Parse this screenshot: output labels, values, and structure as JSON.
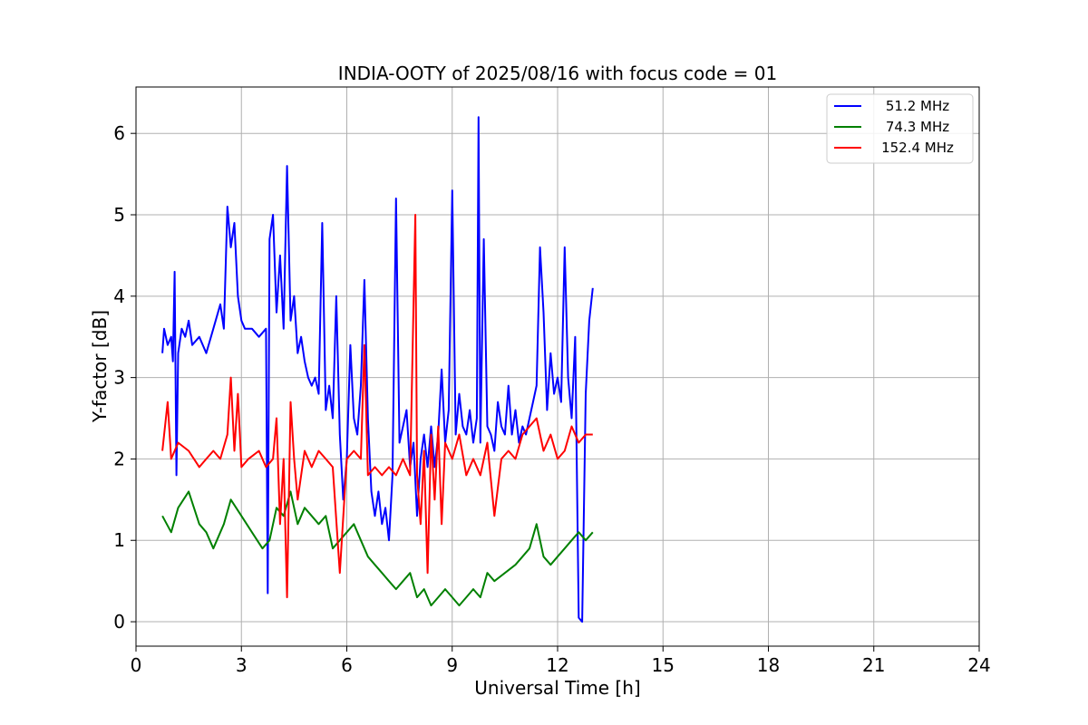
{
  "chart_data": {
    "type": "line",
    "title": "INDIA-OOTY of 2025/08/16 with focus code = 01",
    "xlabel": "Universal Time [h]",
    "ylabel": "Y-factor [dB]",
    "xlim": [
      0,
      24
    ],
    "ylim": [
      -0.3,
      6.57
    ],
    "xticks": [
      0,
      3,
      6,
      9,
      12,
      15,
      18,
      21,
      24
    ],
    "yticks": [
      0,
      1,
      2,
      3,
      4,
      5,
      6
    ],
    "grid": true,
    "legend_position": "top-right",
    "series": [
      {
        "name": "51.2 MHz",
        "color": "#0000ff",
        "x": [
          0.75,
          0.8,
          0.9,
          1.0,
          1.05,
          1.1,
          1.15,
          1.2,
          1.3,
          1.4,
          1.5,
          1.6,
          1.8,
          2.0,
          2.2,
          2.4,
          2.5,
          2.6,
          2.7,
          2.8,
          2.9,
          3.0,
          3.1,
          3.3,
          3.5,
          3.7,
          3.75,
          3.8,
          3.9,
          4.0,
          4.1,
          4.2,
          4.3,
          4.4,
          4.5,
          4.6,
          4.7,
          4.8,
          4.9,
          5.0,
          5.1,
          5.2,
          5.3,
          5.4,
          5.5,
          5.6,
          5.7,
          5.8,
          5.9,
          6.0,
          6.1,
          6.2,
          6.3,
          6.4,
          6.5,
          6.6,
          6.7,
          6.8,
          6.9,
          7.0,
          7.1,
          7.2,
          7.3,
          7.4,
          7.5,
          7.6,
          7.7,
          7.8,
          7.9,
          8.0,
          8.1,
          8.2,
          8.3,
          8.4,
          8.5,
          8.6,
          8.7,
          8.8,
          8.9,
          9.0,
          9.1,
          9.2,
          9.3,
          9.4,
          9.5,
          9.6,
          9.7,
          9.75,
          9.8,
          9.9,
          10.0,
          10.1,
          10.2,
          10.3,
          10.4,
          10.5,
          10.6,
          10.7,
          10.8,
          10.9,
          11.0,
          11.1,
          11.2,
          11.3,
          11.4,
          11.5,
          11.6,
          11.7,
          11.8,
          11.9,
          12.0,
          12.1,
          12.2,
          12.3,
          12.4,
          12.5,
          12.6,
          12.7,
          12.8,
          12.9,
          13.0
        ],
        "y": [
          3.3,
          3.6,
          3.4,
          3.5,
          3.2,
          4.3,
          1.8,
          3.3,
          3.6,
          3.5,
          3.7,
          3.4,
          3.5,
          3.3,
          3.6,
          3.9,
          3.6,
          5.1,
          4.6,
          4.9,
          4.0,
          3.7,
          3.6,
          3.6,
          3.5,
          3.6,
          0.35,
          4.7,
          5.0,
          3.8,
          4.5,
          3.6,
          5.6,
          3.7,
          4.0,
          3.3,
          3.5,
          3.2,
          3.0,
          2.9,
          3.0,
          2.8,
          4.9,
          2.6,
          2.9,
          2.5,
          4.0,
          2.3,
          1.5,
          2.0,
          3.4,
          2.5,
          2.3,
          2.9,
          4.2,
          2.5,
          1.6,
          1.3,
          1.6,
          1.2,
          1.4,
          1.0,
          1.8,
          5.2,
          2.2,
          2.4,
          2.6,
          1.9,
          2.2,
          1.3,
          2.0,
          2.3,
          1.9,
          2.4,
          1.9,
          2.3,
          3.1,
          2.2,
          2.6,
          5.3,
          2.3,
          2.8,
          2.4,
          2.3,
          2.6,
          2.2,
          2.5,
          6.2,
          2.2,
          4.7,
          2.4,
          2.3,
          2.1,
          2.7,
          2.4,
          2.3,
          2.9,
          2.3,
          2.6,
          2.2,
          2.4,
          2.3,
          2.5,
          2.7,
          2.9,
          4.6,
          3.8,
          2.6,
          3.3,
          2.8,
          3.0,
          2.7,
          4.6,
          3.0,
          2.5,
          3.5,
          0.05,
          0.0,
          2.8,
          3.7,
          4.1
        ]
      },
      {
        "name": "74.3 MHz",
        "color": "#008000",
        "x": [
          0.75,
          1.0,
          1.2,
          1.5,
          1.8,
          2.0,
          2.2,
          2.5,
          2.7,
          3.0,
          3.3,
          3.6,
          3.8,
          4.0,
          4.2,
          4.4,
          4.6,
          4.8,
          5.0,
          5.2,
          5.4,
          5.6,
          5.8,
          6.0,
          6.2,
          6.4,
          6.6,
          6.8,
          7.0,
          7.2,
          7.4,
          7.6,
          7.8,
          8.0,
          8.2,
          8.4,
          8.6,
          8.8,
          9.0,
          9.2,
          9.4,
          9.6,
          9.8,
          10.0,
          10.2,
          10.5,
          10.8,
          11.0,
          11.2,
          11.4,
          11.6,
          11.8,
          12.0,
          12.2,
          12.4,
          12.6,
          12.8,
          13.0
        ],
        "y": [
          1.3,
          1.1,
          1.4,
          1.6,
          1.2,
          1.1,
          0.9,
          1.2,
          1.5,
          1.3,
          1.1,
          0.9,
          1.0,
          1.4,
          1.3,
          1.6,
          1.2,
          1.4,
          1.3,
          1.2,
          1.3,
          0.9,
          1.0,
          1.1,
          1.2,
          1.0,
          0.8,
          0.7,
          0.6,
          0.5,
          0.4,
          0.5,
          0.6,
          0.3,
          0.4,
          0.2,
          0.3,
          0.4,
          0.3,
          0.2,
          0.3,
          0.4,
          0.3,
          0.6,
          0.5,
          0.6,
          0.7,
          0.8,
          0.9,
          1.2,
          0.8,
          0.7,
          0.8,
          0.9,
          1.0,
          1.1,
          1.0,
          1.1
        ]
      },
      {
        "name": "152.4 MHz",
        "color": "#ff0000",
        "x": [
          0.75,
          0.9,
          1.0,
          1.2,
          1.5,
          1.8,
          2.0,
          2.2,
          2.4,
          2.6,
          2.7,
          2.8,
          2.9,
          3.0,
          3.2,
          3.5,
          3.7,
          3.9,
          4.0,
          4.1,
          4.2,
          4.3,
          4.4,
          4.5,
          4.6,
          4.8,
          5.0,
          5.2,
          5.4,
          5.6,
          5.8,
          6.0,
          6.2,
          6.4,
          6.5,
          6.6,
          6.8,
          7.0,
          7.2,
          7.4,
          7.6,
          7.8,
          7.95,
          8.0,
          8.1,
          8.2,
          8.3,
          8.4,
          8.5,
          8.6,
          8.7,
          8.8,
          9.0,
          9.2,
          9.4,
          9.6,
          9.8,
          10.0,
          10.2,
          10.4,
          10.6,
          10.8,
          11.0,
          11.2,
          11.4,
          11.6,
          11.8,
          12.0,
          12.2,
          12.4,
          12.6,
          12.8,
          13.0
        ],
        "y": [
          2.1,
          2.7,
          2.0,
          2.2,
          2.1,
          1.9,
          2.0,
          2.1,
          2.0,
          2.3,
          3.0,
          2.1,
          2.8,
          1.9,
          2.0,
          2.1,
          1.9,
          2.0,
          2.5,
          1.2,
          2.0,
          0.3,
          2.7,
          2.0,
          1.5,
          2.1,
          1.9,
          2.1,
          2.0,
          1.9,
          0.6,
          2.0,
          2.1,
          2.0,
          3.4,
          1.8,
          1.9,
          1.8,
          1.9,
          1.8,
          2.0,
          1.8,
          5.0,
          1.8,
          1.2,
          2.1,
          0.6,
          2.3,
          1.5,
          2.4,
          1.2,
          2.2,
          2.0,
          2.3,
          1.8,
          2.0,
          1.8,
          2.2,
          1.3,
          2.0,
          2.1,
          2.0,
          2.3,
          2.4,
          2.5,
          2.1,
          2.3,
          2.0,
          2.1,
          2.4,
          2.2,
          2.3,
          2.3
        ]
      }
    ]
  }
}
